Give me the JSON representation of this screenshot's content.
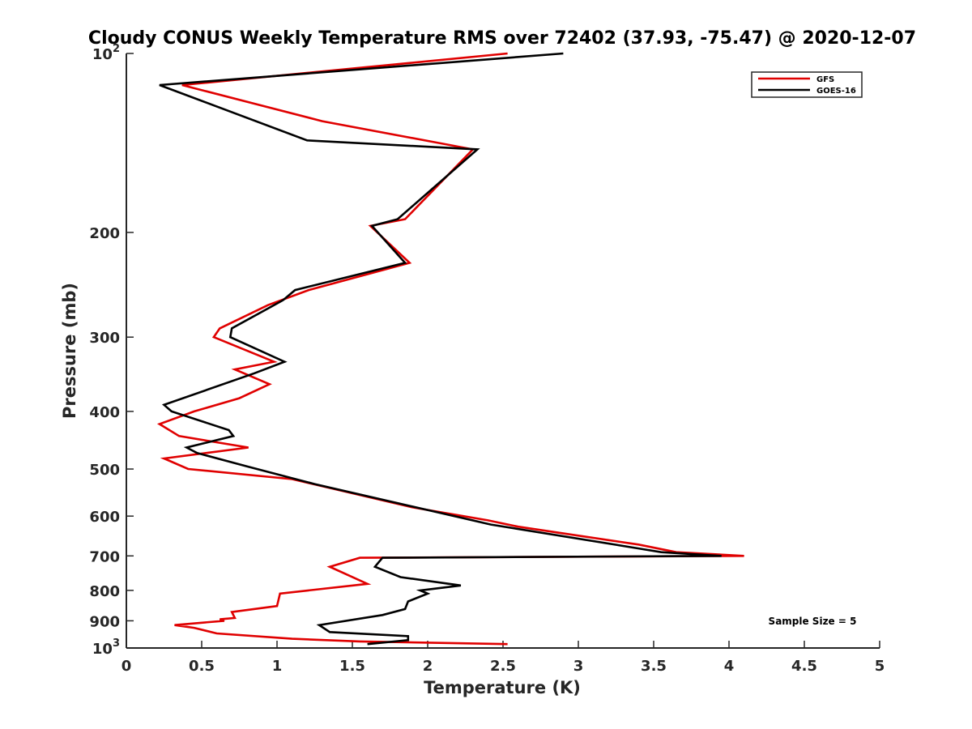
{
  "chart_data": {
    "type": "line",
    "title": "Cloudy CONUS Weekly Temperature RMS over 72402 (37.93, -75.47) @ 2020-12-07",
    "xlabel": "Temperature (K)",
    "ylabel": "Pressure (mb)",
    "xlim": [
      0,
      5
    ],
    "ylim": [
      100,
      1000
    ],
    "y_scale": "log",
    "y_reversed": true,
    "grid": false,
    "legend_position": "top-right",
    "x_ticks": [
      {
        "value": 0,
        "label": "0"
      },
      {
        "value": 0.5,
        "label": "0.5"
      },
      {
        "value": 1,
        "label": "1"
      },
      {
        "value": 1.5,
        "label": "1.5"
      },
      {
        "value": 2,
        "label": "2"
      },
      {
        "value": 2.5,
        "label": "2.5"
      },
      {
        "value": 3,
        "label": "3"
      },
      {
        "value": 3.5,
        "label": "3.5"
      },
      {
        "value": 4,
        "label": "4"
      },
      {
        "value": 4.5,
        "label": "4.5"
      },
      {
        "value": 5,
        "label": "5"
      }
    ],
    "y_ticks": [
      {
        "value": 100,
        "base": "10",
        "exp": "2"
      },
      {
        "value": 200,
        "base": "200",
        "exp": ""
      },
      {
        "value": 300,
        "base": "300",
        "exp": ""
      },
      {
        "value": 400,
        "base": "400",
        "exp": ""
      },
      {
        "value": 500,
        "base": "500",
        "exp": ""
      },
      {
        "value": 600,
        "base": "600",
        "exp": ""
      },
      {
        "value": 700,
        "base": "700",
        "exp": ""
      },
      {
        "value": 800,
        "base": "800",
        "exp": ""
      },
      {
        "value": 900,
        "base": "900",
        "exp": ""
      },
      {
        "value": 1000,
        "base": "10",
        "exp": "3"
      }
    ],
    "annotation": "Sample Size = 5",
    "series": [
      {
        "name": "GFS",
        "color": "#e00000",
        "points": [
          [
            2.53,
            100
          ],
          [
            0.37,
            113
          ],
          [
            1.3,
            130
          ],
          [
            2.3,
            145
          ],
          [
            1.85,
            190
          ],
          [
            1.62,
            195
          ],
          [
            1.88,
            225
          ],
          [
            1.21,
            250
          ],
          [
            0.94,
            265
          ],
          [
            0.62,
            290
          ],
          [
            0.58,
            300
          ],
          [
            0.98,
            330
          ],
          [
            0.72,
            340
          ],
          [
            0.95,
            360
          ],
          [
            0.75,
            380
          ],
          [
            0.45,
            400
          ],
          [
            0.22,
            420
          ],
          [
            0.35,
            440
          ],
          [
            0.81,
            460
          ],
          [
            0.25,
            480
          ],
          [
            0.41,
            500
          ],
          [
            1.1,
            520
          ],
          [
            1.9,
            580
          ],
          [
            2.4,
            610
          ],
          [
            2.6,
            625
          ],
          [
            3.4,
            670
          ],
          [
            3.65,
            690
          ],
          [
            4.1,
            700
          ],
          [
            1.55,
            705
          ],
          [
            1.35,
            730
          ],
          [
            1.6,
            780
          ],
          [
            1.02,
            810
          ],
          [
            1.0,
            850
          ],
          [
            0.7,
            870
          ],
          [
            0.72,
            890
          ],
          [
            0.62,
            895
          ],
          [
            0.65,
            900
          ],
          [
            0.32,
            915
          ],
          [
            0.45,
            925
          ],
          [
            0.6,
            945
          ],
          [
            1.1,
            965
          ],
          [
            1.55,
            975
          ],
          [
            2.53,
            985
          ]
        ]
      },
      {
        "name": "GOES-16",
        "color": "#000000",
        "points": [
          [
            2.9,
            100
          ],
          [
            0.22,
            113
          ],
          [
            1.2,
            140
          ],
          [
            2.33,
            145
          ],
          [
            1.8,
            190
          ],
          [
            1.63,
            195
          ],
          [
            1.85,
            225
          ],
          [
            1.12,
            250
          ],
          [
            1.04,
            260
          ],
          [
            0.7,
            290
          ],
          [
            0.69,
            300
          ],
          [
            1.05,
            330
          ],
          [
            0.85,
            345
          ],
          [
            0.25,
            390
          ],
          [
            0.3,
            400
          ],
          [
            0.68,
            430
          ],
          [
            0.71,
            440
          ],
          [
            0.4,
            460
          ],
          [
            0.47,
            470
          ],
          [
            0.8,
            495
          ],
          [
            1.25,
            530
          ],
          [
            2.42,
            620
          ],
          [
            3.4,
            680
          ],
          [
            3.55,
            690
          ],
          [
            3.95,
            700
          ],
          [
            1.7,
            705
          ],
          [
            1.65,
            730
          ],
          [
            1.82,
            760
          ],
          [
            2.22,
            785
          ],
          [
            1.95,
            800
          ],
          [
            2.0,
            810
          ],
          [
            1.87,
            835
          ],
          [
            1.85,
            860
          ],
          [
            1.7,
            880
          ],
          [
            1.28,
            915
          ],
          [
            1.35,
            940
          ],
          [
            1.87,
            955
          ],
          [
            1.87,
            970
          ],
          [
            1.6,
            985
          ]
        ]
      }
    ]
  }
}
